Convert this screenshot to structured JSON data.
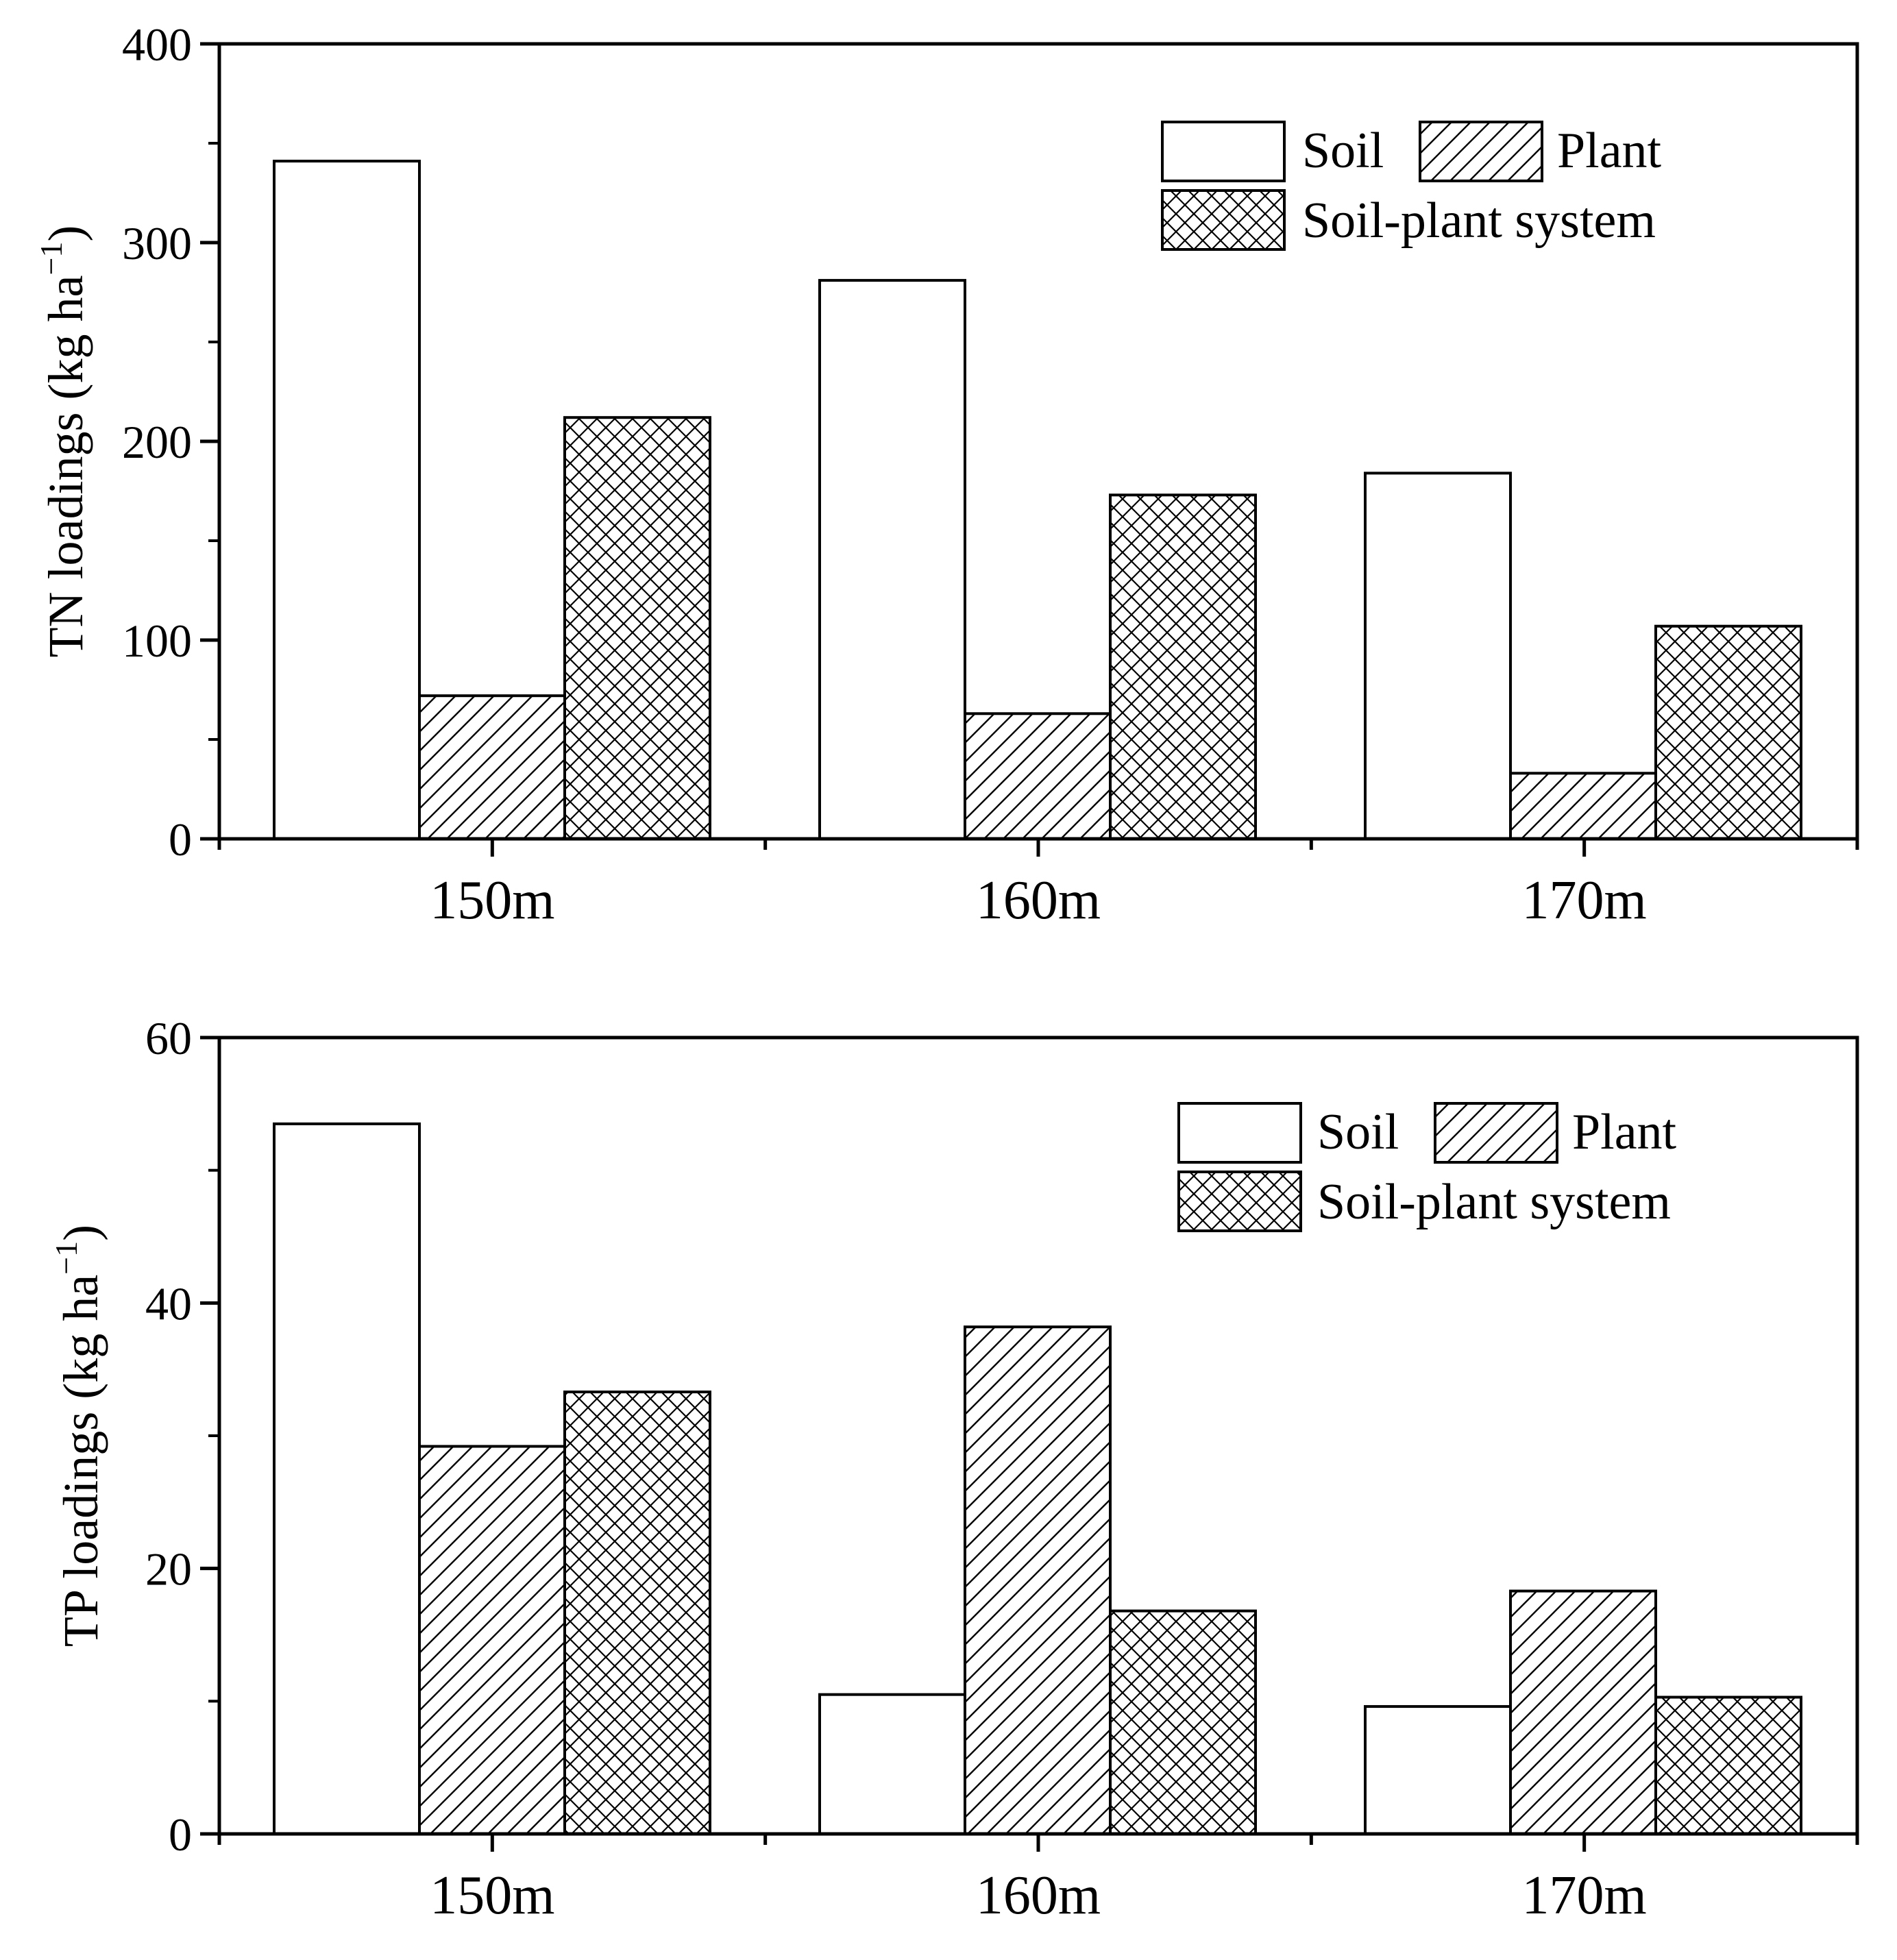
{
  "chart_data": [
    {
      "type": "bar",
      "categories": [
        "150m",
        "160m",
        "170m"
      ],
      "series": [
        {
          "name": "Soil",
          "pattern": "none",
          "values": [
            341,
            281,
            184
          ]
        },
        {
          "name": "Plant",
          "pattern": "hatch",
          "values": [
            72,
            63,
            33
          ]
        },
        {
          "name": "Soil-plant system",
          "pattern": "crosshatch",
          "values": [
            212,
            173,
            107
          ]
        }
      ],
      "ylabel_prefix": "TN loadings (kg ha",
      "ylabel_sup": "−1",
      "ylabel_suffix": ")",
      "ylim": [
        0,
        400
      ],
      "yticks": [
        "0",
        "100",
        "200",
        "300",
        "400"
      ],
      "legend_position": "top-right",
      "grid": false
    },
    {
      "type": "bar",
      "categories": [
        "150m",
        "160m",
        "170m"
      ],
      "series": [
        {
          "name": "Soil",
          "pattern": "none",
          "values": [
            53.5,
            10.5,
            9.6
          ]
        },
        {
          "name": "Plant",
          "pattern": "hatch",
          "values": [
            29.2,
            38.2,
            18.3
          ]
        },
        {
          "name": "Soil-plant system",
          "pattern": "crosshatch",
          "values": [
            33.3,
            16.8,
            10.3
          ]
        }
      ],
      "ylabel_prefix": "TP loadings (kg ha",
      "ylabel_sup": "−1",
      "ylabel_suffix": ")",
      "ylim": [
        0,
        60
      ],
      "yticks": [
        "0",
        "20",
        "40",
        "60"
      ],
      "legend_position": "top-right",
      "grid": false
    }
  ],
  "colors": {
    "axis": "#000000",
    "fill": "#ffffff",
    "pattern": "#000000"
  }
}
